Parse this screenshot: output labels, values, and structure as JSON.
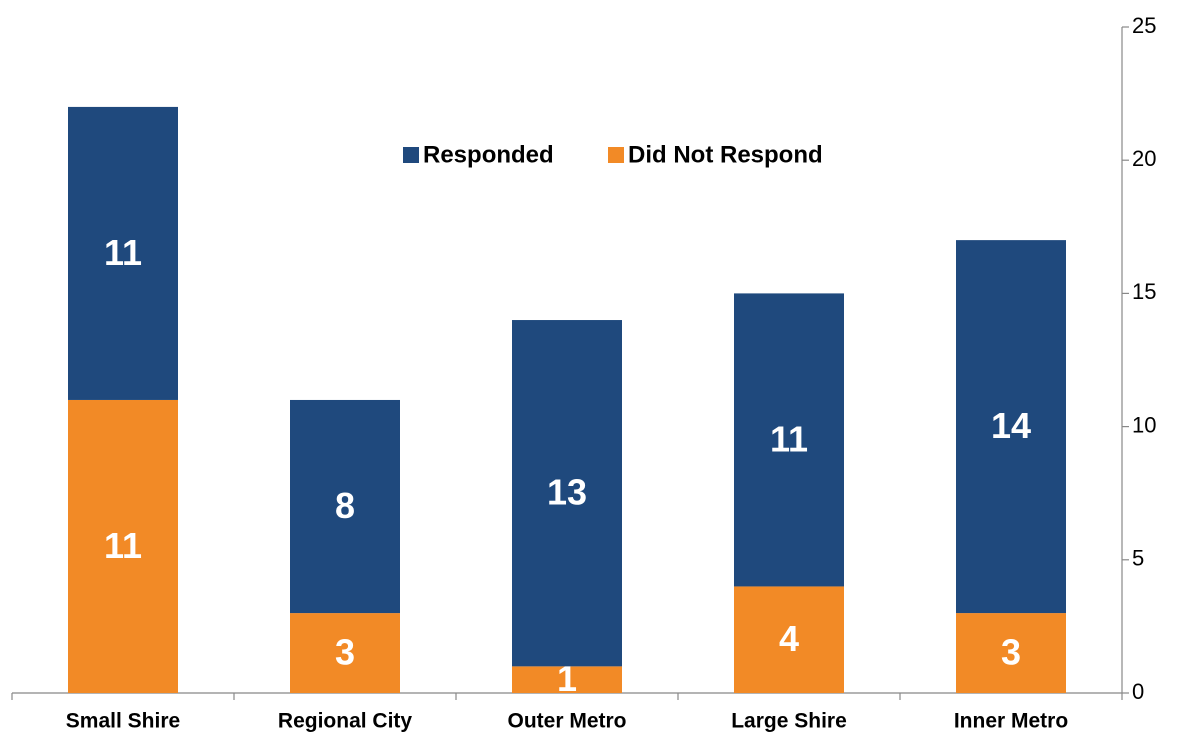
{
  "chart_data": {
    "type": "stacked_bar",
    "categories": [
      "Small Shire",
      "Regional City",
      "Outer Metro",
      "Large Shire",
      "Inner Metro"
    ],
    "series": [
      {
        "name": "Responded",
        "color": "#1f497d",
        "values": [
          11,
          8,
          13,
          11,
          14
        ]
      },
      {
        "name": "Did Not Respond",
        "color": "#f28a26",
        "values": [
          11,
          3,
          1,
          4,
          3
        ]
      }
    ],
    "ylim": [
      0,
      25
    ],
    "yticks": [
      0,
      5,
      10,
      15,
      20,
      25
    ],
    "y_axis_side": "right",
    "grid": false
  }
}
